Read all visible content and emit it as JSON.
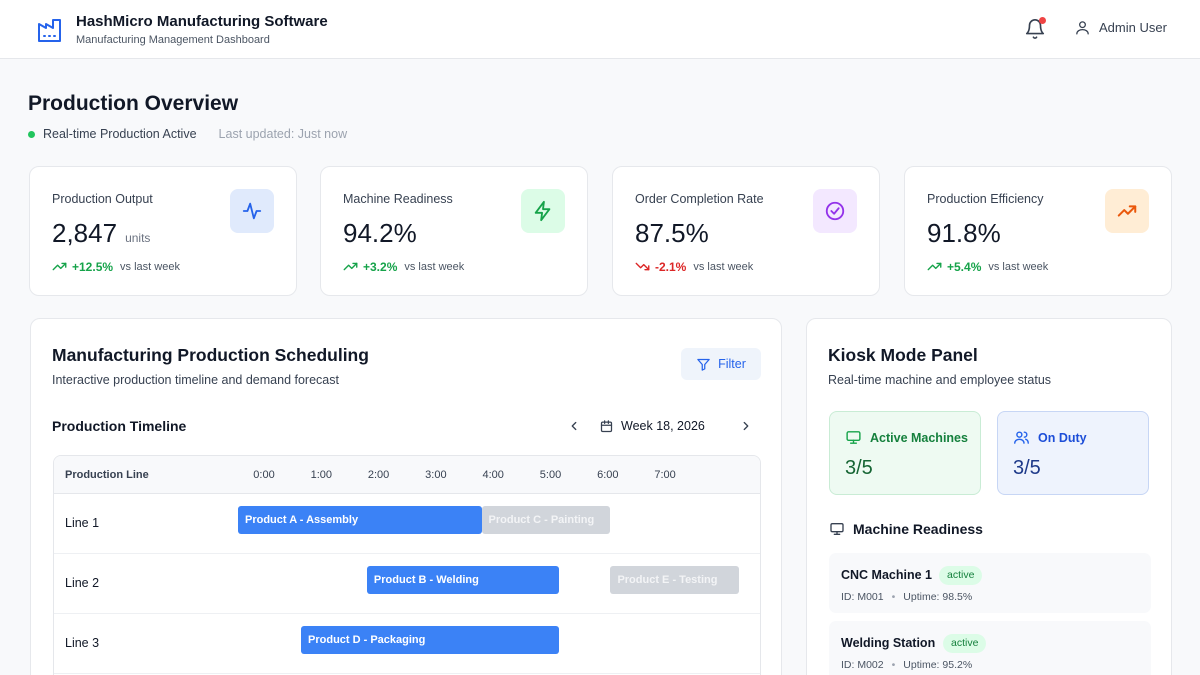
{
  "header": {
    "title": "HashMicro Manufacturing Software",
    "subtitle": "Manufacturing Management Dashboard",
    "user_name": "Admin User",
    "logo_icon": "factory-icon",
    "notification_icon": "bell-icon"
  },
  "overview": {
    "title": "Production Overview",
    "status": "Real-time Production Active",
    "last_updated": "Last updated: Just now"
  },
  "kpis": [
    {
      "label": "Production Output",
      "value": "2,847",
      "unit": "units",
      "trend": "+12.5%",
      "direction": "up",
      "comparison": "vs last week",
      "icon": "activity-icon",
      "icon_bg": "#e0eafc",
      "icon_color": "#2563eb"
    },
    {
      "label": "Machine Readiness",
      "value": "94.2%",
      "unit": "",
      "trend": "+3.2%",
      "direction": "up",
      "comparison": "vs last week",
      "icon": "zap-icon",
      "icon_bg": "#dcfce7",
      "icon_color": "#16a34a"
    },
    {
      "label": "Order Completion Rate",
      "value": "87.5%",
      "unit": "",
      "trend": "-2.1%",
      "direction": "down",
      "comparison": "vs last week",
      "icon": "check-circle-icon",
      "icon_bg": "#f3e8ff",
      "icon_color": "#9333ea"
    },
    {
      "label": "Production Efficiency",
      "value": "91.8%",
      "unit": "",
      "trend": "+5.4%",
      "direction": "up",
      "comparison": "vs last week",
      "icon": "trending-up-icon",
      "icon_bg": "#ffedd5",
      "icon_color": "#ea580c"
    }
  ],
  "scheduling": {
    "title": "Manufacturing Production Scheduling",
    "subtitle": "Interactive production timeline and demand forecast",
    "filter_label": "Filter",
    "timeline_title": "Production Timeline",
    "week_label": "Week 18, 2026",
    "column_header": "Production Line",
    "hours": [
      "0:00",
      "1:00",
      "2:00",
      "3:00",
      "4:00",
      "5:00",
      "6:00",
      "7:00"
    ],
    "lines": [
      {
        "name": "Line 1",
        "tasks": [
          {
            "label": "Product A - Assembly",
            "start": 0,
            "end": 4.25,
            "status": "active"
          },
          {
            "label": "Product C - Painting",
            "start": 4.25,
            "end": 6.5,
            "status": "planned"
          }
        ]
      },
      {
        "name": "Line 2",
        "tasks": [
          {
            "label": "Product B - Welding",
            "start": 2.25,
            "end": 5.6,
            "status": "active"
          },
          {
            "label": "Product E - Testing",
            "start": 6.5,
            "end": 8.75,
            "status": "planned"
          }
        ]
      },
      {
        "name": "Line 3",
        "tasks": [
          {
            "label": "Product D - Packaging",
            "start": 1.1,
            "end": 5.6,
            "status": "active"
          }
        ]
      }
    ]
  },
  "kiosk": {
    "title": "Kiosk Mode Panel",
    "subtitle": "Real-time machine and employee status",
    "active_machines": {
      "label": "Active Machines",
      "value": "3/5"
    },
    "on_duty": {
      "label": "On Duty",
      "value": "3/5"
    },
    "readiness_title": "Machine Readiness",
    "machines": [
      {
        "name": "CNC Machine 1",
        "status": "active",
        "id": "ID: M001",
        "uptime": "Uptime: 98.5%"
      },
      {
        "name": "Welding Station",
        "status": "active",
        "id": "ID: M002",
        "uptime": "Uptime: 95.2%"
      }
    ]
  }
}
